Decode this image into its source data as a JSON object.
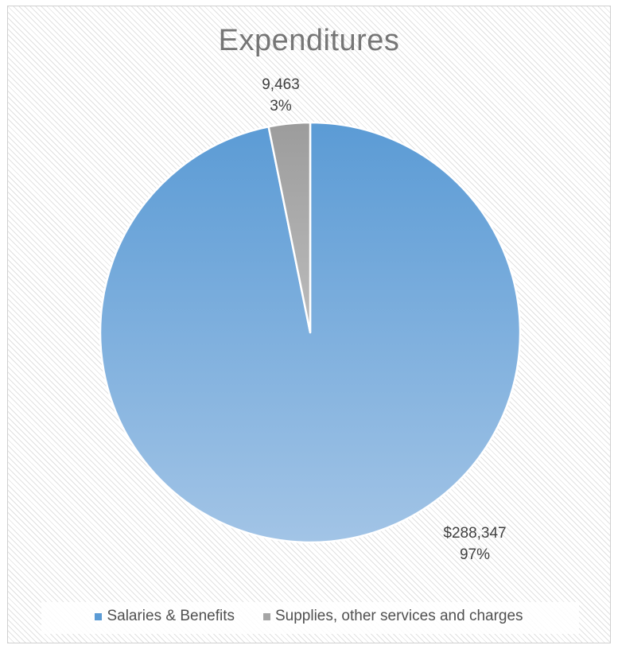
{
  "chart_data": {
    "type": "pie",
    "title": "Expenditures",
    "categories": [
      "Salaries & Benefits",
      "Supplies, other services and charges"
    ],
    "values": [
      288347,
      9463
    ],
    "percentages": [
      97,
      3
    ],
    "data_labels": [
      {
        "value": "$288,347",
        "percent": "97%"
      },
      {
        "value": "9,463",
        "percent": "3%"
      }
    ],
    "colors": [
      "#5b9bd5",
      "#a5a5a5"
    ],
    "legend_position": "bottom"
  }
}
